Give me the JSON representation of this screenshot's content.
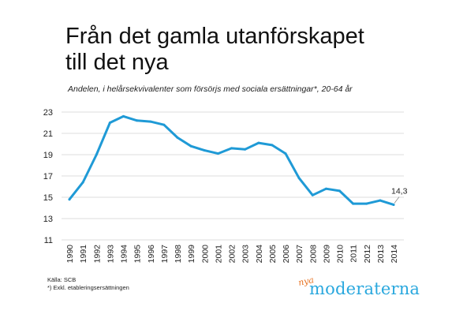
{
  "header": {
    "title_line1": "Från det gamla utanförskapet",
    "title_line2": "till det nya",
    "subtitle": "Andelen, i helårsekvivalenter som försörjs med sociala ersättningar*, 20-64 år"
  },
  "footer": {
    "source": "Källa: SCB",
    "footnote": "*) Exkl. etableringsersättningen"
  },
  "logo": {
    "prefix": "nya",
    "name": "moderaterna"
  },
  "colors": {
    "line": "#1f9ad6",
    "grid": "#d0d0d0",
    "logo_orange": "#e8711f",
    "logo_blue": "#2aa8de"
  },
  "chart_data": {
    "type": "line",
    "title": "Från det gamla utanförskapet till det nya",
    "subtitle": "Andelen, i helårsekvivalenter som försörjs med sociala ersättningar*, 20-64 år",
    "xlabel": "",
    "ylabel": "",
    "ylim": [
      11,
      23
    ],
    "yticks": [
      11,
      13,
      15,
      17,
      19,
      21,
      23
    ],
    "grid": true,
    "x": [
      "1990",
      "1991",
      "1992",
      "1993",
      "1994",
      "1995",
      "1996",
      "1997",
      "1998",
      "1999",
      "2000",
      "2001",
      "2002",
      "2003",
      "2004",
      "2005",
      "2006",
      "2007",
      "2008",
      "2009",
      "2010",
      "2011",
      "2012",
      "2013",
      "2014"
    ],
    "series": [
      {
        "values": [
          14.8,
          16.4,
          19.0,
          22.0,
          22.6,
          22.2,
          22.1,
          21.8,
          20.6,
          19.8,
          19.4,
          19.1,
          19.6,
          19.5,
          20.1,
          19.9,
          19.1,
          16.8,
          15.2,
          15.8,
          15.6,
          14.4,
          14.4,
          14.7,
          14.3
        ]
      }
    ],
    "annotations": [
      {
        "x": "2014",
        "text": "14,3"
      }
    ]
  }
}
